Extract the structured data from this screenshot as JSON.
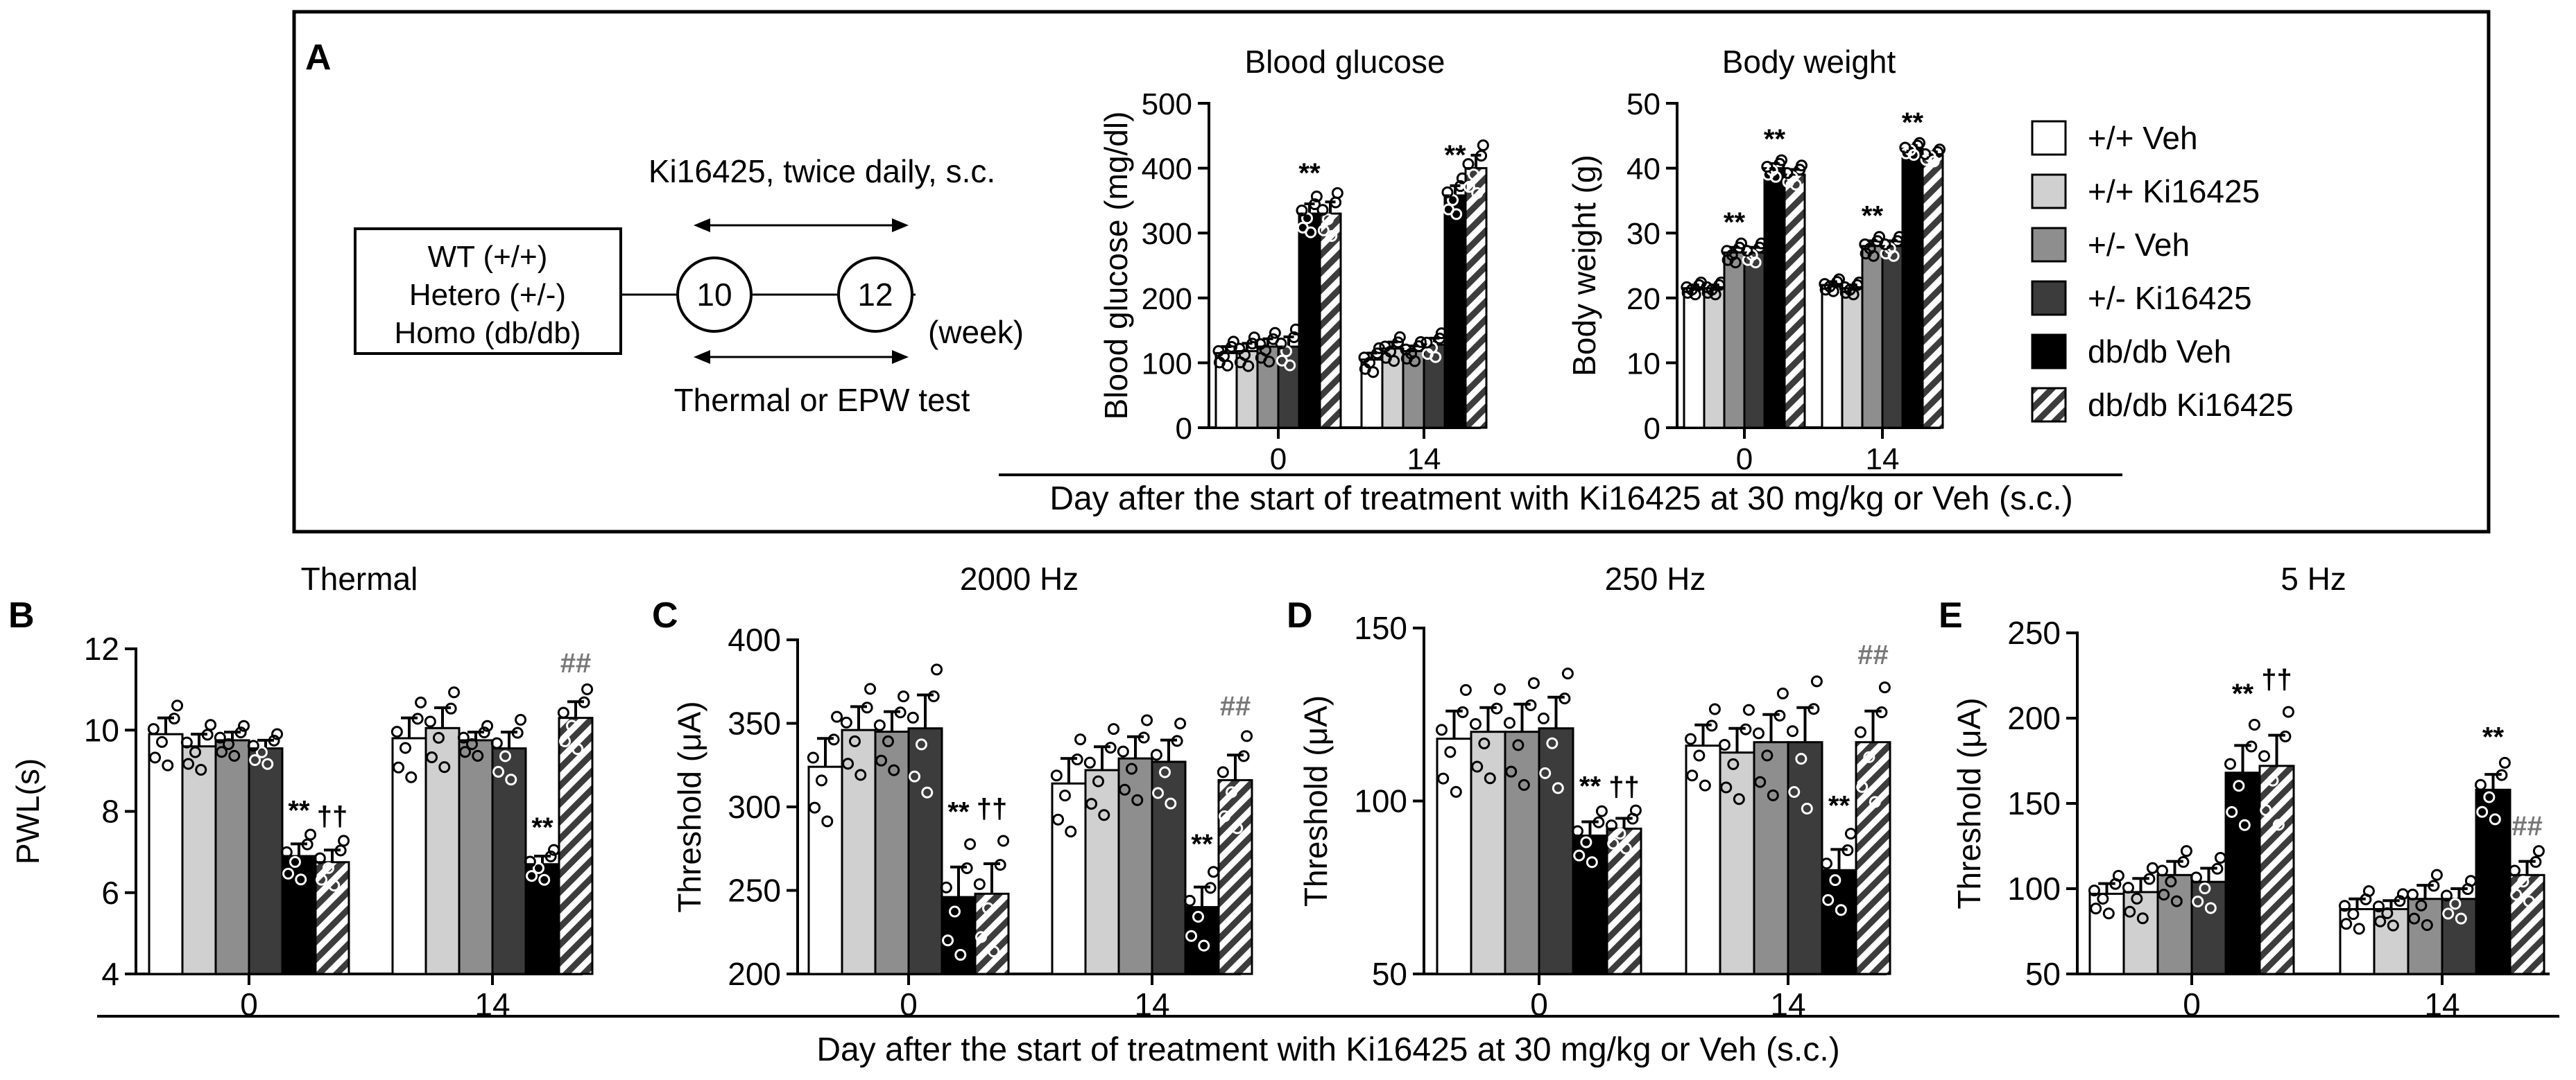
{
  "panel_labels": {
    "a": "A",
    "b": "B",
    "c": "C",
    "d": "D",
    "e": "E"
  },
  "timeline": {
    "genotypes": [
      "WT (+/+)",
      "Hetero (+/-)",
      "Homo (db/db)"
    ],
    "drug_text": "Ki16425, twice daily, s.c.",
    "test_text": "Thermal or EPW test",
    "week_start": "10",
    "week_end": "12",
    "unit": "(week)"
  },
  "legend": [
    "+/+ Veh",
    "+/+ Ki16425",
    "+/- Veh",
    "+/- Ki16425",
    "db/db Veh",
    "db/db Ki16425"
  ],
  "styles": {
    "fills": [
      "#ffffff",
      "#d0d0d0",
      "#8e8e8e",
      "#3c3c3c",
      "#000000",
      "hatch"
    ],
    "hatch_color": "#3c3c3c"
  },
  "top_xlabel": "Day after the start of treatment with Ki16425 at 30 mg/kg or Veh (s.c.)",
  "bottom_xlabel": "Day after the start of treatment with Ki16425 at 30 mg/kg or Veh (s.c.)",
  "chart_data": [
    {
      "id": "glucose",
      "type": "bar",
      "title": "Blood glucose",
      "ylabel": "Blood glucose (mg/dl)",
      "ylim": [
        0,
        500
      ],
      "yticks": [
        0,
        100,
        200,
        300,
        400,
        500
      ],
      "categories": [
        "0",
        "14"
      ],
      "series_values": [
        [
          115,
          105
        ],
        [
          118,
          122
        ],
        [
          125,
          118
        ],
        [
          125,
          128
        ],
        [
          330,
          358
        ],
        [
          330,
          400
        ]
      ],
      "errors": [
        [
          10,
          10
        ],
        [
          12,
          10
        ],
        [
          12,
          8
        ],
        [
          15,
          10
        ],
        [
          15,
          15
        ],
        [
          18,
          20
        ]
      ],
      "annotations": [
        {
          "group": 0,
          "series": 4,
          "text": "**"
        },
        {
          "group": 1,
          "series": 4,
          "text": "**"
        }
      ]
    },
    {
      "id": "weight",
      "type": "bar",
      "title": "Body weight",
      "ylabel": "Body weight (g)",
      "ylim": [
        0,
        50
      ],
      "yticks": [
        0,
        10,
        20,
        30,
        40,
        50
      ],
      "categories": [
        "0",
        "14"
      ],
      "series_values": [
        [
          21.5,
          22
        ],
        [
          21.5,
          21.5
        ],
        [
          27,
          28
        ],
        [
          27,
          28
        ],
        [
          40,
          43
        ],
        [
          39,
          42
        ]
      ],
      "errors": [
        [
          0.5,
          0.5
        ],
        [
          0.5,
          0.5
        ],
        [
          0.8,
          0.8
        ],
        [
          0.8,
          0.8
        ],
        [
          0.7,
          0.5
        ],
        [
          0.8,
          0.5
        ]
      ],
      "annotations": [
        {
          "group": 0,
          "series": 2,
          "text": "**"
        },
        {
          "group": 0,
          "series": 4,
          "text": "**"
        },
        {
          "group": 1,
          "series": 2,
          "text": "**"
        },
        {
          "group": 1,
          "series": 4,
          "text": "**"
        }
      ]
    },
    {
      "id": "thermal",
      "type": "bar",
      "title": "Thermal",
      "ylabel": "PWL(s)",
      "ylim": [
        4,
        12
      ],
      "yticks": [
        4,
        6,
        8,
        10,
        12
      ],
      "categories": [
        "0",
        "14"
      ],
      "series_values": [
        [
          9.9,
          9.8
        ],
        [
          9.6,
          10.05
        ],
        [
          9.75,
          9.75
        ],
        [
          9.55,
          9.55
        ],
        [
          6.9,
          6.7
        ],
        [
          6.75,
          10.3
        ]
      ],
      "errors": [
        [
          0.4,
          0.5
        ],
        [
          0.3,
          0.5
        ],
        [
          0.2,
          0.2
        ],
        [
          0.2,
          0.4
        ],
        [
          0.3,
          0.2
        ],
        [
          0.3,
          0.4
        ]
      ],
      "annotations": [
        {
          "group": 0,
          "series": 4,
          "text": "**"
        },
        {
          "group": 0,
          "series": 5,
          "text": "††"
        },
        {
          "group": 1,
          "series": 4,
          "text": "**"
        },
        {
          "group": 1,
          "series": 5,
          "text": "##"
        }
      ]
    },
    {
      "id": "hz2000",
      "type": "bar",
      "title": "2000 Hz",
      "ylabel": "Threshold (μA)",
      "ylim": [
        200,
        400
      ],
      "yticks": [
        200,
        250,
        300,
        350,
        400
      ],
      "categories": [
        "0",
        "14"
      ],
      "series_values": [
        [
          324,
          314
        ],
        [
          346,
          322
        ],
        [
          345,
          329
        ],
        [
          347,
          327
        ],
        [
          246,
          240
        ],
        [
          248,
          316
        ]
      ],
      "errors": [
        [
          17,
          15
        ],
        [
          14,
          14
        ],
        [
          12,
          13
        ],
        [
          20,
          13
        ],
        [
          18,
          12
        ],
        [
          18,
          15
        ]
      ],
      "annotations": [
        {
          "group": 0,
          "series": 4,
          "text": "**"
        },
        {
          "group": 0,
          "series": 5,
          "text": "††"
        },
        {
          "group": 1,
          "series": 4,
          "text": "**"
        },
        {
          "group": 1,
          "series": 5,
          "text": "##"
        }
      ]
    },
    {
      "id": "hz250",
      "type": "bar",
      "title": "250 Hz",
      "ylabel": "Threshold (μA)",
      "ylim": [
        50,
        150
      ],
      "yticks": [
        50,
        100,
        150
      ],
      "categories": [
        "0",
        "14"
      ],
      "series_values": [
        [
          118,
          116
        ],
        [
          120,
          114
        ],
        [
          120,
          117
        ],
        [
          121,
          117
        ],
        [
          90,
          80
        ],
        [
          92,
          117
        ]
      ],
      "errors": [
        [
          8,
          6
        ],
        [
          7,
          7
        ],
        [
          8,
          8
        ],
        [
          9,
          10
        ],
        [
          4,
          6
        ],
        [
          3,
          9
        ]
      ],
      "annotations": [
        {
          "group": 0,
          "series": 4,
          "text": "**"
        },
        {
          "group": 0,
          "series": 5,
          "text": "††"
        },
        {
          "group": 1,
          "series": 4,
          "text": "**"
        },
        {
          "group": 1,
          "series": 5,
          "text": "##"
        }
      ]
    },
    {
      "id": "hz5",
      "type": "bar",
      "title": "5 Hz",
      "ylabel": "Threshold (μA)",
      "ylim": [
        50,
        250
      ],
      "yticks": [
        50,
        100,
        150,
        200,
        250
      ],
      "categories": [
        "0",
        "14"
      ],
      "series_values": [
        [
          97,
          88
        ],
        [
          98,
          88
        ],
        [
          108,
          94
        ],
        [
          104,
          94
        ],
        [
          168,
          158
        ],
        [
          172,
          108
        ]
      ],
      "errors": [
        [
          6,
          6
        ],
        [
          8,
          5
        ],
        [
          8,
          8
        ],
        [
          8,
          6
        ],
        [
          16,
          9
        ],
        [
          18,
          8
        ]
      ],
      "annotations": [
        {
          "group": 0,
          "series": 4,
          "text": "**"
        },
        {
          "group": 0,
          "series": 5,
          "text": "††"
        },
        {
          "group": 1,
          "series": 4,
          "text": "**"
        },
        {
          "group": 1,
          "series": 5,
          "text": "##"
        }
      ]
    }
  ]
}
